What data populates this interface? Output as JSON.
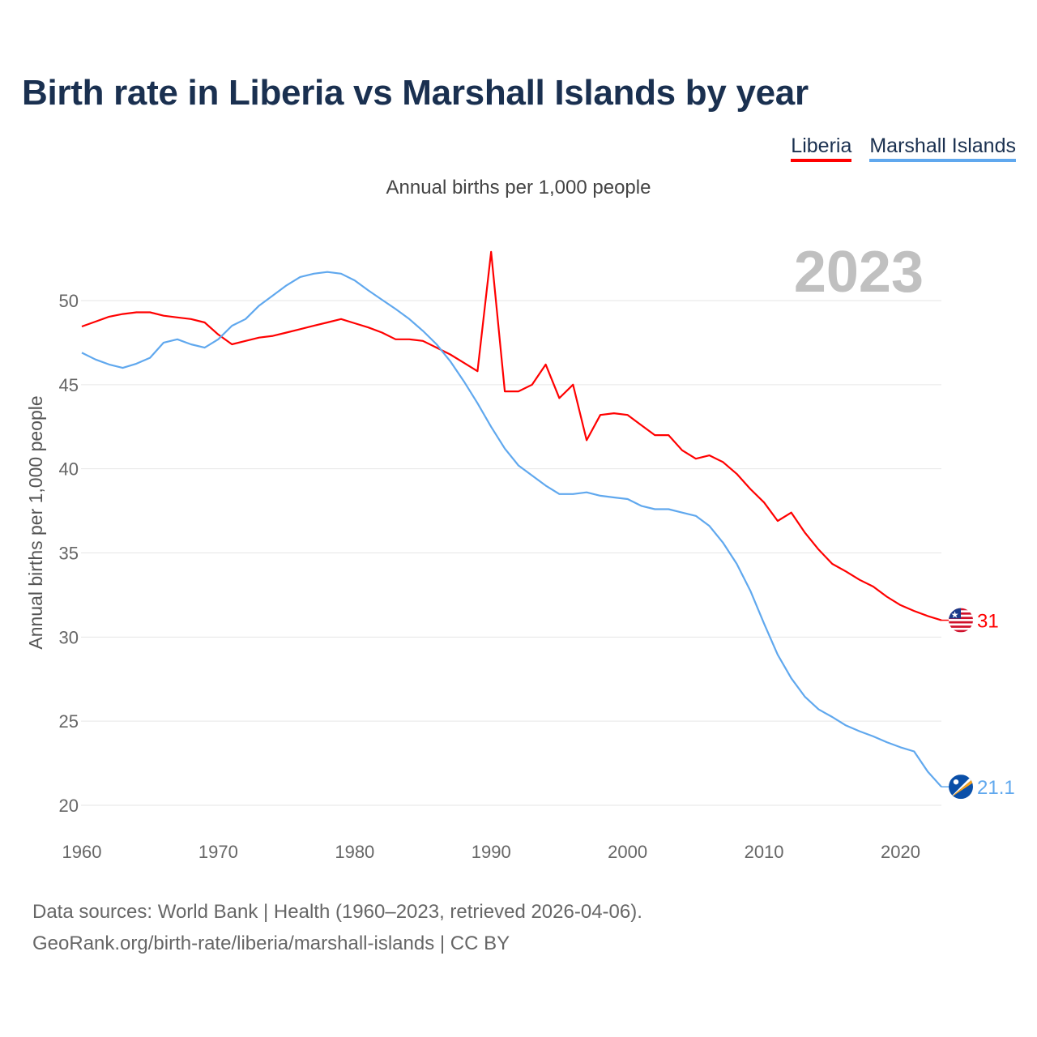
{
  "title": "Birth rate in Liberia vs Marshall Islands by year",
  "subtitle": "Annual births per 1,000 people",
  "footer": {
    "line1": "Data sources: World Bank | Health (1960–2023, retrieved 2026-04-06).",
    "line2": "GeoRank.org/birth-rate/liberia/marshall-islands | CC BY"
  },
  "chart_data": {
    "type": "line",
    "title": "Birth rate in Liberia vs Marshall Islands by year",
    "ylabel": "Annual births per 1,000 people",
    "xlabel": "",
    "year_label": "2023",
    "xlim": [
      1960,
      2023
    ],
    "ylim": [
      20,
      52
    ],
    "x_ticks": [
      "1960",
      "1970",
      "1980",
      "1990",
      "2000",
      "2010",
      "2020"
    ],
    "y_ticks": [
      "20",
      "25",
      "30",
      "35",
      "40",
      "45",
      "50"
    ],
    "grid": true,
    "legend_position": "top-right",
    "x": [
      1960,
      1961,
      1962,
      1963,
      1964,
      1965,
      1966,
      1967,
      1968,
      1969,
      1970,
      1971,
      1972,
      1973,
      1974,
      1975,
      1976,
      1977,
      1978,
      1979,
      1980,
      1981,
      1982,
      1983,
      1984,
      1985,
      1986,
      1987,
      1988,
      1989,
      1990,
      1991,
      1992,
      1993,
      1994,
      1995,
      1996,
      1997,
      1998,
      1999,
      2000,
      2001,
      2002,
      2003,
      2004,
      2005,
      2006,
      2007,
      2008,
      2009,
      2010,
      2011,
      2012,
      2013,
      2014,
      2015,
      2016,
      2017,
      2018,
      2019,
      2020,
      2021,
      2022,
      2023
    ],
    "series": [
      {
        "name": "Liberia",
        "color": "#ff0000",
        "end_label": "31",
        "flag": "liberia-flag",
        "values": [
          48.46,
          48.75,
          49.04,
          49.2,
          49.3,
          49.3,
          49.1,
          49.0,
          48.9,
          48.7,
          47.98,
          47.4,
          47.6,
          47.8,
          47.9,
          48.1,
          48.3,
          48.5,
          48.7,
          48.9,
          48.65,
          48.4,
          48.1,
          47.7,
          47.7,
          47.6,
          47.2,
          46.8,
          46.3,
          45.8,
          52.9,
          44.6,
          44.6,
          45.0,
          46.2,
          44.2,
          45.0,
          41.7,
          43.2,
          43.3,
          43.2,
          42.6,
          42.0,
          42.0,
          41.1,
          40.6,
          40.8,
          40.4,
          39.7,
          38.8,
          38.0,
          36.9,
          37.4,
          36.2,
          35.2,
          34.35,
          33.9,
          33.4,
          33.0,
          32.4,
          31.9,
          31.55,
          31.25,
          31.0
        ]
      },
      {
        "name": "Marshall Islands",
        "color": "#60a8ee",
        "end_label": "21.1",
        "flag": "marshall-islands-flag",
        "values": [
          46.9,
          46.5,
          46.2,
          46.0,
          46.25,
          46.6,
          47.5,
          47.7,
          47.4,
          47.2,
          47.7,
          48.5,
          48.9,
          49.7,
          50.3,
          50.9,
          51.4,
          51.6,
          51.7,
          51.6,
          51.2,
          50.6,
          50.05,
          49.5,
          48.9,
          48.2,
          47.4,
          46.4,
          45.2,
          43.9,
          42.5,
          41.2,
          40.2,
          39.6,
          39.0,
          38.5,
          38.5,
          38.6,
          38.4,
          38.3,
          38.2,
          37.8,
          37.6,
          37.6,
          37.4,
          37.2,
          36.6,
          35.6,
          34.35,
          32.75,
          30.8,
          28.95,
          27.55,
          26.45,
          25.7,
          25.25,
          24.75,
          24.4,
          24.1,
          23.75,
          23.45,
          23.2,
          22.0,
          21.1
        ]
      }
    ]
  }
}
